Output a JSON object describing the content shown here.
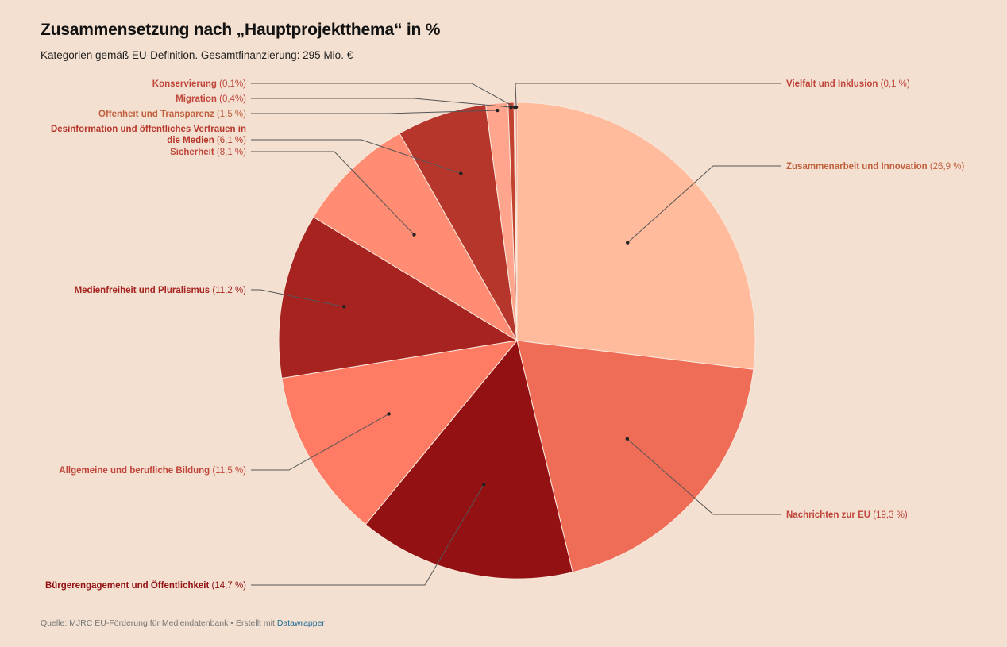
{
  "header": {
    "title": "Zusammensetzung nach „Hauptprojektthema“ in %",
    "subtitle": "Kategorien gemäß EU-Definition. Gesamtfinanzierung: 295 Mio. €"
  },
  "footer": {
    "source": "Quelle: MJRC EU-Förderung für Mediendatenbank • Erstellt mit",
    "link": "Datawrapper"
  },
  "chart_data": {
    "type": "pie",
    "title": "Zusammensetzung nach „Hauptprojektthema“ in %",
    "subtitle": "Kategorien gemäß EU-Definition. Gesamtfinanzierung: 295 Mio. €",
    "slices": [
      {
        "label": "Zusammenarbeit und Innovation",
        "value": 26.9,
        "value_label": "(26,9 %)",
        "color": "#ffbb9c",
        "label_color": "#c0603e"
      },
      {
        "label": "Nachrichten zur EU",
        "value": 19.3,
        "value_label": "(19,3 %)",
        "color": "#ef6c56",
        "label_color": "#c0453b"
      },
      {
        "label": "Bürgerengagement und Öffentlichkeit",
        "value": 14.7,
        "value_label": "(14,7 %)",
        "color": "#931013",
        "label_color": "#931013"
      },
      {
        "label": "Allgemeine und berufliche Bildung",
        "value": 11.5,
        "value_label": "(11,5 %)",
        "color": "#ff7b63",
        "label_color": "#c0453b"
      },
      {
        "label": "Medienfreiheit und Pluralismus",
        "value": 11.2,
        "value_label": "(11,2 %)",
        "color": "#a6231f",
        "label_color": "#a6231f"
      },
      {
        "label": "Sicherheit",
        "value": 8.1,
        "value_label": "(8,1 %)",
        "color": "#ff8c73",
        "label_color": "#c0453b"
      },
      {
        "label": "Desinformation und öffentliches Vertrauen in die Medien",
        "value": 6.1,
        "value_label": "(6,1 %)",
        "color": "#b7362c",
        "label_color": "#b7362c"
      },
      {
        "label": "Offenheit und Transparenz",
        "value": 1.5,
        "value_label": "(1,5 %)",
        "color": "#ffa58d",
        "label_color": "#c0603e"
      },
      {
        "label": "Migration",
        "value": 0.4,
        "value_label": "(0,4%)",
        "color": "#c2412f",
        "label_color": "#c0453b"
      },
      {
        "label": "Konservierung",
        "value": 0.1,
        "value_label": "(0,1%)",
        "color": "#d9553f",
        "label_color": "#c0453b"
      },
      {
        "label": "Vielfalt und Inklusion",
        "value": 0.1,
        "value_label": "(0,1 %)",
        "color": "#e0583c",
        "label_color": "#c0453b"
      }
    ]
  }
}
